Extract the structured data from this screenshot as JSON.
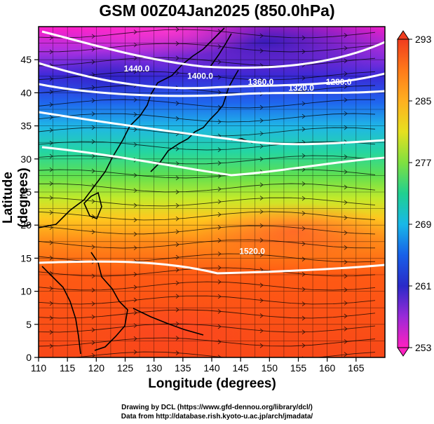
{
  "title": "GSM 00Z04Jan2025 (850.0hPa)",
  "xlabel": "Longitude (degrees)",
  "ylabel": "Latitude  (degrees)",
  "x_ticks": [
    "110",
    "115",
    "120",
    "125",
    "130",
    "135",
    "140",
    "145",
    "150",
    "155",
    "160",
    "165"
  ],
  "y_ticks": [
    "0",
    "5",
    "10",
    "15",
    "20",
    "25",
    "30",
    "35",
    "40",
    "45"
  ],
  "colorbar_ticks": [
    "293",
    "285",
    "277",
    "269",
    "261",
    "253"
  ],
  "contour_labels": [
    {
      "text": "1440.0",
      "lon": 127,
      "lat": 43.2
    },
    {
      "text": "1400.0",
      "lon": 138,
      "lat": 42.1
    },
    {
      "text": "1360.0",
      "lon": 148.5,
      "lat": 41.2
    },
    {
      "text": "1320.0",
      "lon": 155.5,
      "lat": 40.3
    },
    {
      "text": "1280.0",
      "lon": 162,
      "lat": 41.2
    },
    {
      "text": "1520.0",
      "lon": 147,
      "lat": 15.6
    }
  ],
  "credit_line1": "Drawing by DCL (https://www.gfd-dennou.org/library/dcl/)",
  "credit_line2": "Data from http://database.rish.kyoto-u.ac.jp/arch/jmadata/",
  "chart_data": {
    "type": "heatmap",
    "title": "GSM 00Z04Jan2025 (850.0hPa)",
    "xlabel": "Longitude (degrees)",
    "ylabel": "Latitude  (degrees)",
    "xlim": [
      110,
      170
    ],
    "ylim": [
      0,
      50
    ],
    "colorbar_range": [
      253,
      293
    ],
    "colorbar_ticks": [
      293,
      285,
      277,
      269,
      261,
      253
    ],
    "contour_levels": [
      1280,
      1320,
      1360,
      1400,
      1440,
      1480,
      1520
    ],
    "grid": true
  }
}
